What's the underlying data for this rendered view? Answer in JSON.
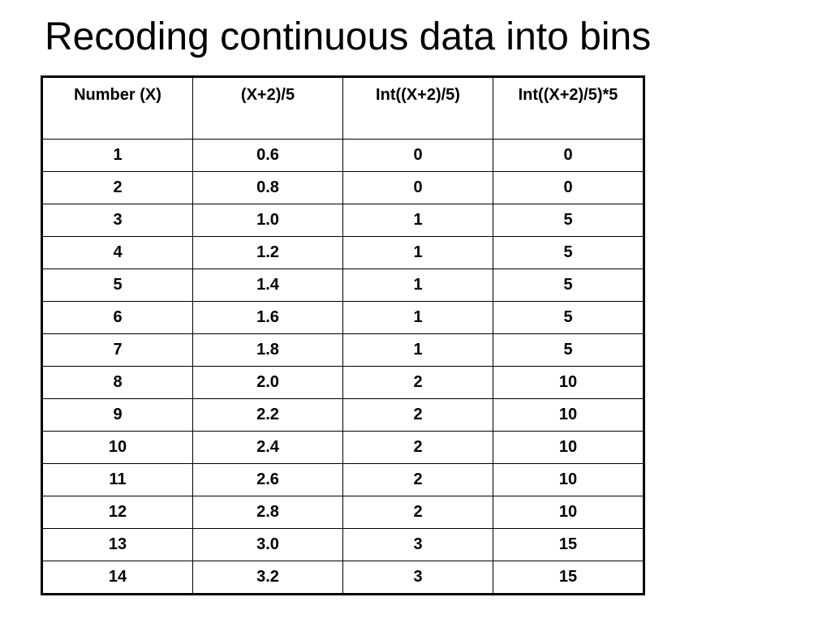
{
  "title": "Recoding continuous data into bins",
  "table": {
    "headers": [
      "Number (X)",
      "(X+2)/5",
      "Int((X+2)/5)",
      "Int((X+2)/5)*5"
    ],
    "rows": [
      [
        "1",
        "0.6",
        "0",
        "0"
      ],
      [
        "2",
        "0.8",
        "0",
        "0"
      ],
      [
        "3",
        "1.0",
        "1",
        "5"
      ],
      [
        "4",
        "1.2",
        "1",
        "5"
      ],
      [
        "5",
        "1.4",
        "1",
        "5"
      ],
      [
        "6",
        "1.6",
        "1",
        "5"
      ],
      [
        "7",
        "1.8",
        "1",
        "5"
      ],
      [
        "8",
        "2.0",
        "2",
        "10"
      ],
      [
        "9",
        "2.2",
        "2",
        "10"
      ],
      [
        "10",
        "2.4",
        "2",
        "10"
      ],
      [
        "11",
        "2.6",
        "2",
        "10"
      ],
      [
        "12",
        "2.8",
        "2",
        "10"
      ],
      [
        "13",
        "3.0",
        "3",
        "15"
      ],
      [
        "14",
        "3.2",
        "3",
        "15"
      ]
    ]
  }
}
